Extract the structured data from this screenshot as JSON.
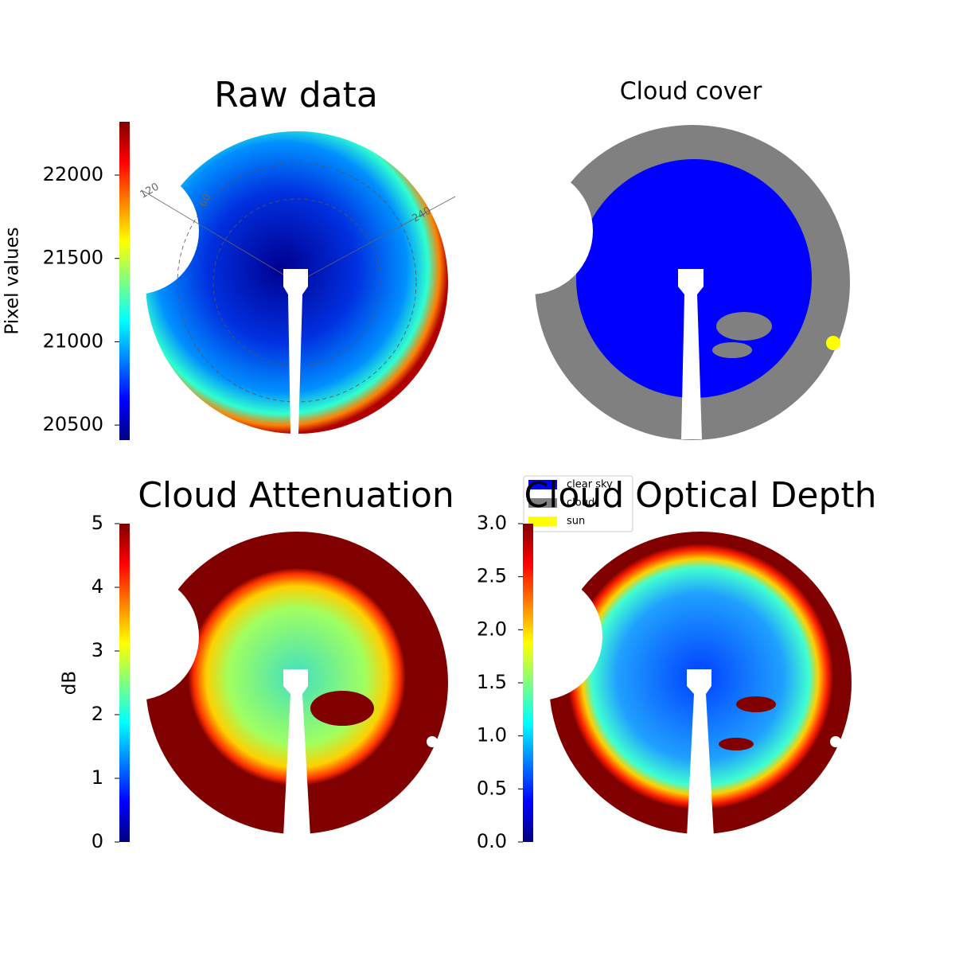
{
  "chart_data": [
    {
      "type": "image",
      "title": "Raw data",
      "colorbar": {
        "label": "Pixel values",
        "lim": [
          20410,
          22320
        ],
        "ticks": [
          20500,
          21000,
          21500,
          22000
        ]
      },
      "annotations": [
        "120",
        "60",
        "240"
      ]
    },
    {
      "type": "image",
      "title": "Cloud cover",
      "legend": [
        {
          "name": "clear sky",
          "color": "#0000ff"
        },
        {
          "name": "cloud",
          "color": "#808080"
        },
        {
          "name": "sun",
          "color": "#ffff00"
        }
      ]
    },
    {
      "type": "image",
      "title": "Cloud Attenuation",
      "colorbar": {
        "label": "dB",
        "lim": [
          0,
          5
        ],
        "ticks": [
          0,
          1,
          2,
          3,
          4,
          5
        ]
      }
    },
    {
      "type": "image",
      "title": "Cloud Optical Depth",
      "colorbar": {
        "lim": [
          0,
          3
        ],
        "ticks": [
          {
            "value": 0,
            "label": "0.0"
          },
          0.5,
          {
            "value": 1,
            "label": "1.0"
          },
          1.5,
          {
            "value": 2,
            "label": "2.0"
          },
          2.5,
          {
            "value": 3,
            "label": "3.0"
          }
        ]
      }
    }
  ]
}
